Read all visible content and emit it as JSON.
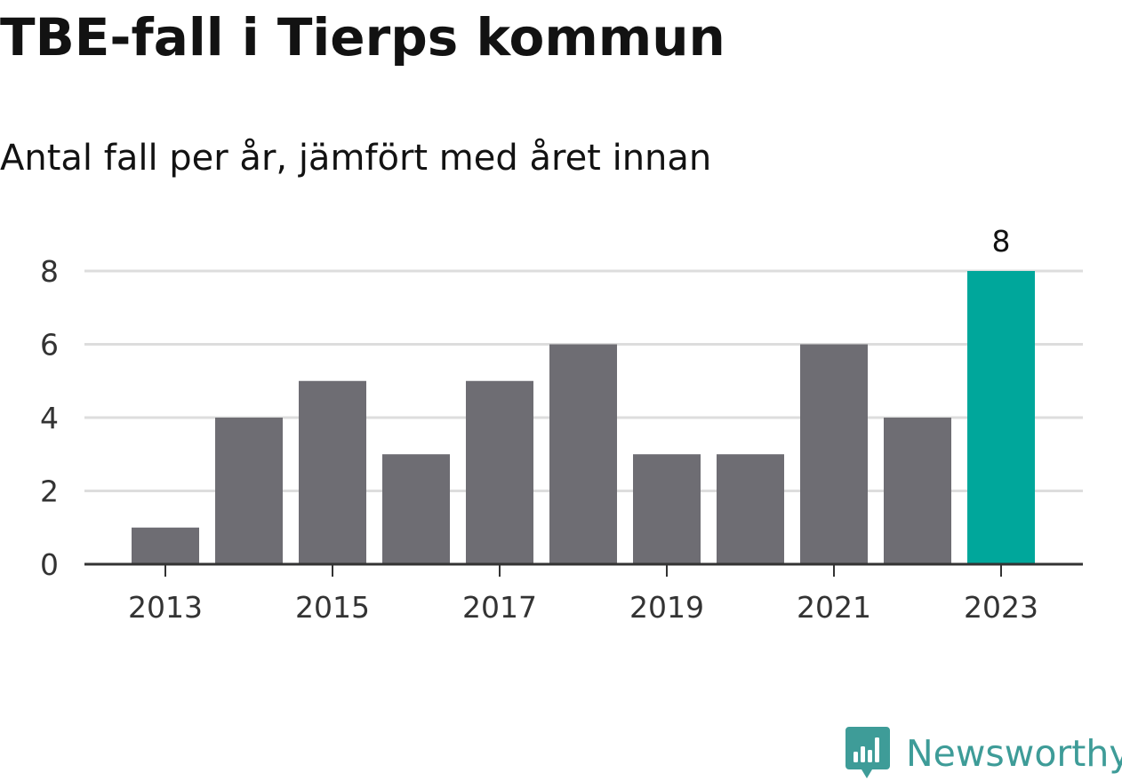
{
  "title": "TBE-fall i Tierps kommun",
  "subtitle": "Antal fall per år, jämfört med året innan",
  "brand": {
    "name": "Newsworthy",
    "color": "#3e9c98",
    "icon": "bar-chart-badge-icon"
  },
  "colors": {
    "bar": "#6e6d73",
    "highlight": "#00a79b",
    "grid": "#dddddd",
    "axis": "#333333"
  },
  "chart_data": {
    "type": "bar",
    "categories": [
      "2013",
      "2014",
      "2015",
      "2016",
      "2017",
      "2018",
      "2019",
      "2020",
      "2021",
      "2022",
      "2023"
    ],
    "values": [
      1,
      4,
      5,
      3,
      5,
      6,
      3,
      3,
      6,
      4,
      8
    ],
    "highlight_index": 10,
    "value_labels": [
      {
        "category": "2023",
        "text": "8"
      }
    ],
    "x_tick_labels": [
      "2013",
      "2015",
      "2017",
      "2019",
      "2021",
      "2023"
    ],
    "y_ticks": [
      "0",
      "2",
      "4",
      "6",
      "8"
    ],
    "ylim": [
      0,
      8
    ],
    "grid": true,
    "legend": "none",
    "xlabel": "",
    "ylabel": ""
  }
}
